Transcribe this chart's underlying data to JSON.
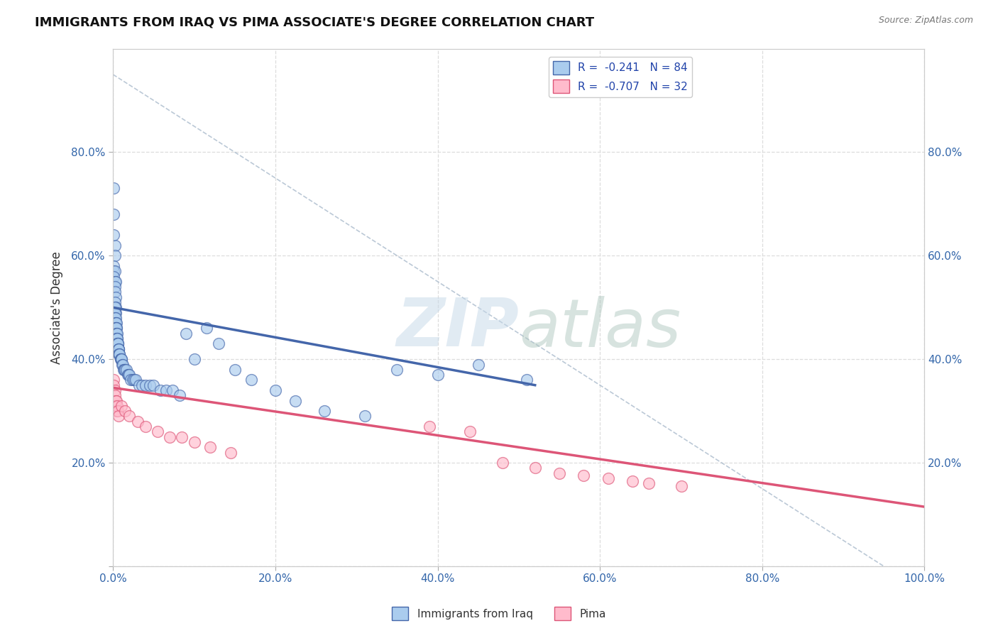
{
  "title": "IMMIGRANTS FROM IRAQ VS PIMA ASSOCIATE'S DEGREE CORRELATION CHART",
  "source": "Source: ZipAtlas.com",
  "ylabel": "Associate's Degree",
  "xlim": [
    0.0,
    1.0
  ],
  "ylim": [
    0.0,
    1.0
  ],
  "blue_scatter_x": [
    0.001,
    0.001,
    0.002,
    0.001,
    0.002,
    0.001,
    0.001,
    0.002,
    0.001,
    0.002,
    0.003,
    0.002,
    0.002,
    0.003,
    0.002,
    0.003,
    0.002,
    0.003,
    0.002,
    0.002,
    0.003,
    0.003,
    0.003,
    0.004,
    0.003,
    0.004,
    0.003,
    0.004,
    0.004,
    0.004,
    0.005,
    0.004,
    0.005,
    0.005,
    0.005,
    0.006,
    0.006,
    0.006,
    0.007,
    0.007,
    0.007,
    0.007,
    0.008,
    0.008,
    0.009,
    0.009,
    0.01,
    0.01,
    0.011,
    0.012,
    0.013,
    0.014,
    0.015,
    0.016,
    0.018,
    0.019,
    0.02,
    0.022,
    0.024,
    0.026,
    0.028,
    0.032,
    0.036,
    0.04,
    0.045,
    0.05,
    0.058,
    0.065,
    0.073,
    0.082,
    0.09,
    0.1,
    0.115,
    0.13,
    0.15,
    0.17,
    0.2,
    0.225,
    0.26,
    0.31,
    0.35,
    0.4,
    0.45,
    0.51
  ],
  "blue_scatter_y": [
    0.68,
    0.73,
    0.62,
    0.64,
    0.6,
    0.58,
    0.57,
    0.57,
    0.56,
    0.55,
    0.55,
    0.54,
    0.53,
    0.52,
    0.51,
    0.5,
    0.5,
    0.49,
    0.49,
    0.48,
    0.48,
    0.47,
    0.47,
    0.47,
    0.46,
    0.46,
    0.46,
    0.46,
    0.45,
    0.45,
    0.45,
    0.44,
    0.44,
    0.44,
    0.43,
    0.43,
    0.43,
    0.43,
    0.42,
    0.42,
    0.42,
    0.41,
    0.41,
    0.41,
    0.4,
    0.4,
    0.4,
    0.4,
    0.39,
    0.39,
    0.38,
    0.38,
    0.38,
    0.38,
    0.37,
    0.37,
    0.37,
    0.36,
    0.36,
    0.36,
    0.36,
    0.35,
    0.35,
    0.35,
    0.35,
    0.35,
    0.34,
    0.34,
    0.34,
    0.33,
    0.45,
    0.4,
    0.46,
    0.43,
    0.38,
    0.36,
    0.34,
    0.32,
    0.3,
    0.29,
    0.38,
    0.37,
    0.39,
    0.36
  ],
  "pink_scatter_x": [
    0.001,
    0.001,
    0.002,
    0.002,
    0.003,
    0.003,
    0.004,
    0.004,
    0.005,
    0.006,
    0.007,
    0.01,
    0.015,
    0.02,
    0.03,
    0.04,
    0.055,
    0.07,
    0.085,
    0.1,
    0.12,
    0.145,
    0.39,
    0.44,
    0.48,
    0.52,
    0.55,
    0.58,
    0.61,
    0.64,
    0.66,
    0.7
  ],
  "pink_scatter_y": [
    0.36,
    0.35,
    0.34,
    0.33,
    0.32,
    0.31,
    0.3,
    0.32,
    0.31,
    0.3,
    0.29,
    0.31,
    0.3,
    0.29,
    0.28,
    0.27,
    0.26,
    0.25,
    0.25,
    0.24,
    0.23,
    0.22,
    0.27,
    0.26,
    0.2,
    0.19,
    0.18,
    0.175,
    0.17,
    0.165,
    0.16,
    0.155
  ],
  "blue_line_x": [
    0.0,
    0.52
  ],
  "blue_line_y": [
    0.5,
    0.35
  ],
  "pink_line_x": [
    0.0,
    1.0
  ],
  "pink_line_y": [
    0.345,
    0.115
  ],
  "dashed_line_x": [
    0.0,
    1.0
  ],
  "dashed_line_y": [
    0.95,
    -0.05
  ],
  "blue_color": "#4466aa",
  "pink_color": "#dd5577",
  "blue_scatter_face": "#aaccee",
  "pink_scatter_face": "#ffbbcc",
  "watermark_zip": "ZIP",
  "watermark_atlas": "atlas",
  "background_color": "#ffffff",
  "grid_color": "#dddddd"
}
